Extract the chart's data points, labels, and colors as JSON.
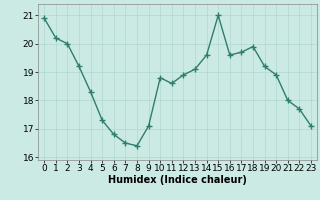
{
  "x": [
    0,
    1,
    2,
    3,
    4,
    5,
    6,
    7,
    8,
    9,
    10,
    11,
    12,
    13,
    14,
    15,
    16,
    17,
    18,
    19,
    20,
    21,
    22,
    23
  ],
  "y": [
    20.9,
    20.2,
    20.0,
    19.2,
    18.3,
    17.3,
    16.8,
    16.5,
    16.4,
    17.1,
    18.8,
    18.6,
    18.9,
    19.1,
    19.6,
    21.0,
    19.6,
    19.7,
    19.9,
    19.2,
    18.9,
    18.0,
    17.7,
    17.1
  ],
  "line_color": "#2e7d6e",
  "marker": "+",
  "markersize": 4,
  "linewidth": 1.0,
  "xlabel": "Humidex (Indice chaleur)",
  "xlim": [
    -0.5,
    23.5
  ],
  "ylim": [
    15.9,
    21.4
  ],
  "yticks": [
    16,
    17,
    18,
    19,
    20,
    21
  ],
  "xticks": [
    0,
    1,
    2,
    3,
    4,
    5,
    6,
    7,
    8,
    9,
    10,
    11,
    12,
    13,
    14,
    15,
    16,
    17,
    18,
    19,
    20,
    21,
    22,
    23
  ],
  "bg_color": "#cceae4",
  "grid_color": "#b0d8d0",
  "xlabel_fontsize": 7,
  "tick_fontsize": 6.5,
  "spine_color": "#888888"
}
